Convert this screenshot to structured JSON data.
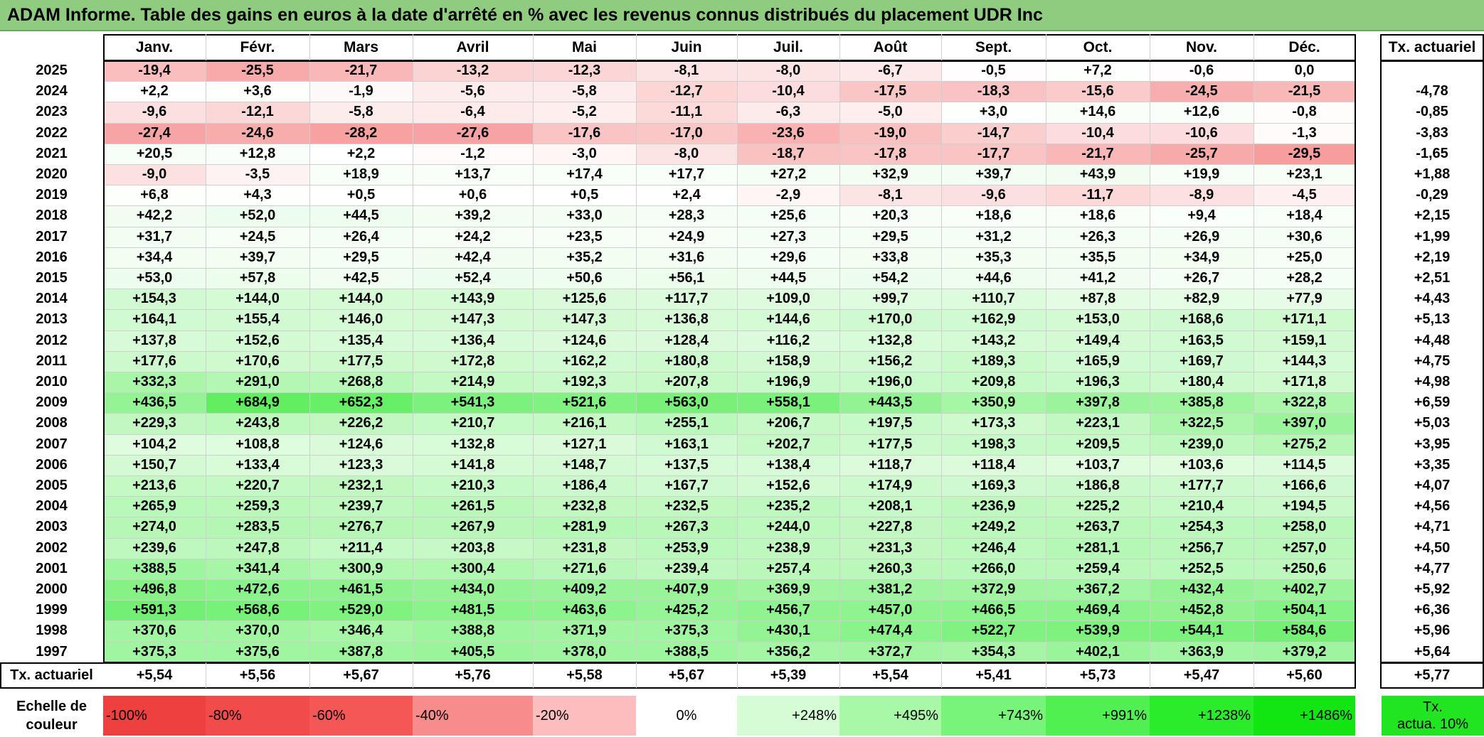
{
  "title": "ADAM Informe. Table des gains en euros à la date d'arrêté en % avec les revenus connus distribués du placement UDR Inc",
  "chart_data": {
    "type": "heatmap",
    "months": [
      "Janv.",
      "Févr.",
      "Mars",
      "Avril",
      "Mai",
      "Juin",
      "Juil.",
      "Août",
      "Sept.",
      "Oct.",
      "Nov.",
      "Déc."
    ],
    "annual_header": "Tx. actuariel",
    "rows": [
      {
        "year": "2025",
        "values": [
          "-19,4",
          "-25,5",
          "-21,7",
          "-13,2",
          "-12,3",
          "-8,1",
          "-8,0",
          "-6,7",
          "-0,5",
          "+7,2",
          "-0,6",
          "0,0"
        ],
        "annual": ""
      },
      {
        "year": "2024",
        "values": [
          "+2,2",
          "+3,6",
          "-1,9",
          "-5,6",
          "-5,8",
          "-12,7",
          "-10,4",
          "-17,5",
          "-18,3",
          "-15,6",
          "-24,5",
          "-21,5"
        ],
        "annual": "-4,78"
      },
      {
        "year": "2023",
        "values": [
          "-9,6",
          "-12,1",
          "-5,8",
          "-6,4",
          "-5,2",
          "-11,1",
          "-6,3",
          "-5,0",
          "+3,0",
          "+14,6",
          "+12,6",
          "-0,8"
        ],
        "annual": "-0,85"
      },
      {
        "year": "2022",
        "values": [
          "-27,4",
          "-24,6",
          "-28,2",
          "-27,6",
          "-17,6",
          "-17,0",
          "-23,6",
          "-19,0",
          "-14,7",
          "-10,4",
          "-10,6",
          "-1,3"
        ],
        "annual": "-3,83"
      },
      {
        "year": "2021",
        "values": [
          "+20,5",
          "+12,8",
          "+2,2",
          "-1,2",
          "-3,0",
          "-8,0",
          "-18,7",
          "-17,8",
          "-17,7",
          "-21,7",
          "-25,7",
          "-29,5"
        ],
        "annual": "-1,65"
      },
      {
        "year": "2020",
        "values": [
          "-9,0",
          "-3,5",
          "+18,9",
          "+13,7",
          "+17,4",
          "+17,7",
          "+27,2",
          "+32,9",
          "+39,7",
          "+43,9",
          "+19,9",
          "+23,1"
        ],
        "annual": "+1,88"
      },
      {
        "year": "2019",
        "values": [
          "+6,8",
          "+4,3",
          "+0,5",
          "+0,6",
          "+0,5",
          "+2,4",
          "-2,9",
          "-8,1",
          "-9,6",
          "-11,7",
          "-8,9",
          "-4,5"
        ],
        "annual": "-0,29"
      },
      {
        "year": "2018",
        "values": [
          "+42,2",
          "+52,0",
          "+44,5",
          "+39,2",
          "+33,0",
          "+28,3",
          "+25,6",
          "+20,3",
          "+18,6",
          "+18,6",
          "+9,4",
          "+18,4"
        ],
        "annual": "+2,15"
      },
      {
        "year": "2017",
        "values": [
          "+31,7",
          "+24,5",
          "+26,4",
          "+24,2",
          "+23,5",
          "+24,9",
          "+27,3",
          "+29,5",
          "+31,2",
          "+26,3",
          "+26,9",
          "+30,6"
        ],
        "annual": "+1,99"
      },
      {
        "year": "2016",
        "values": [
          "+34,4",
          "+39,7",
          "+29,5",
          "+42,4",
          "+35,2",
          "+31,6",
          "+29,6",
          "+33,8",
          "+35,3",
          "+35,5",
          "+34,9",
          "+25,0"
        ],
        "annual": "+2,19"
      },
      {
        "year": "2015",
        "values": [
          "+53,0",
          "+57,8",
          "+42,5",
          "+52,4",
          "+50,6",
          "+56,1",
          "+44,5",
          "+54,2",
          "+44,6",
          "+41,2",
          "+26,7",
          "+28,2"
        ],
        "annual": "+2,51"
      },
      {
        "year": "2014",
        "values": [
          "+154,3",
          "+144,0",
          "+144,0",
          "+143,9",
          "+125,6",
          "+117,7",
          "+109,0",
          "+99,7",
          "+110,7",
          "+87,8",
          "+82,9",
          "+77,9"
        ],
        "annual": "+4,43"
      },
      {
        "year": "2013",
        "values": [
          "+164,1",
          "+155,4",
          "+146,0",
          "+147,3",
          "+147,3",
          "+136,8",
          "+144,6",
          "+170,0",
          "+162,9",
          "+153,0",
          "+168,6",
          "+171,1"
        ],
        "annual": "+5,13"
      },
      {
        "year": "2012",
        "values": [
          "+137,8",
          "+152,6",
          "+135,4",
          "+136,4",
          "+124,6",
          "+128,4",
          "+116,2",
          "+132,8",
          "+143,2",
          "+149,4",
          "+163,5",
          "+159,1"
        ],
        "annual": "+4,48"
      },
      {
        "year": "2011",
        "values": [
          "+177,6",
          "+170,6",
          "+177,5",
          "+172,8",
          "+162,2",
          "+180,8",
          "+158,9",
          "+156,2",
          "+189,3",
          "+165,9",
          "+169,7",
          "+144,3"
        ],
        "annual": "+4,75"
      },
      {
        "year": "2010",
        "values": [
          "+332,3",
          "+291,0",
          "+268,8",
          "+214,9",
          "+192,3",
          "+207,8",
          "+196,9",
          "+196,0",
          "+209,8",
          "+196,3",
          "+180,4",
          "+171,8"
        ],
        "annual": "+4,98"
      },
      {
        "year": "2009",
        "values": [
          "+436,5",
          "+684,9",
          "+652,3",
          "+541,3",
          "+521,6",
          "+563,0",
          "+558,1",
          "+443,5",
          "+350,9",
          "+397,8",
          "+385,8",
          "+322,8"
        ],
        "annual": "+6,59"
      },
      {
        "year": "2008",
        "values": [
          "+229,3",
          "+243,8",
          "+226,2",
          "+210,7",
          "+216,1",
          "+255,1",
          "+206,7",
          "+197,5",
          "+173,3",
          "+223,1",
          "+322,5",
          "+397,0"
        ],
        "annual": "+5,03"
      },
      {
        "year": "2007",
        "values": [
          "+104,2",
          "+108,8",
          "+124,6",
          "+132,8",
          "+127,1",
          "+163,1",
          "+202,7",
          "+177,5",
          "+198,3",
          "+209,5",
          "+239,0",
          "+275,2"
        ],
        "annual": "+3,95"
      },
      {
        "year": "2006",
        "values": [
          "+150,7",
          "+133,4",
          "+123,3",
          "+141,8",
          "+148,7",
          "+137,5",
          "+138,4",
          "+118,7",
          "+118,4",
          "+103,7",
          "+103,6",
          "+114,5"
        ],
        "annual": "+3,35"
      },
      {
        "year": "2005",
        "values": [
          "+213,6",
          "+220,7",
          "+232,1",
          "+210,3",
          "+186,4",
          "+167,7",
          "+152,6",
          "+174,9",
          "+169,3",
          "+186,8",
          "+177,7",
          "+166,6"
        ],
        "annual": "+4,07"
      },
      {
        "year": "2004",
        "values": [
          "+265,9",
          "+259,3",
          "+239,7",
          "+261,5",
          "+232,8",
          "+232,5",
          "+235,2",
          "+208,1",
          "+236,9",
          "+225,2",
          "+210,4",
          "+194,5"
        ],
        "annual": "+4,56"
      },
      {
        "year": "2003",
        "values": [
          "+274,0",
          "+283,5",
          "+276,7",
          "+267,9",
          "+281,9",
          "+267,3",
          "+244,0",
          "+227,8",
          "+249,2",
          "+263,7",
          "+254,3",
          "+258,0"
        ],
        "annual": "+4,71"
      },
      {
        "year": "2002",
        "values": [
          "+239,6",
          "+247,8",
          "+211,4",
          "+203,8",
          "+231,8",
          "+253,9",
          "+238,9",
          "+231,3",
          "+246,4",
          "+281,1",
          "+256,7",
          "+257,0"
        ],
        "annual": "+4,50"
      },
      {
        "year": "2001",
        "values": [
          "+388,5",
          "+341,4",
          "+300,9",
          "+300,4",
          "+271,6",
          "+239,4",
          "+257,4",
          "+260,3",
          "+266,0",
          "+259,4",
          "+252,5",
          "+250,6"
        ],
        "annual": "+4,77"
      },
      {
        "year": "2000",
        "values": [
          "+496,8",
          "+472,6",
          "+461,5",
          "+434,0",
          "+409,2",
          "+407,9",
          "+369,9",
          "+381,2",
          "+372,9",
          "+367,2",
          "+432,4",
          "+402,7"
        ],
        "annual": "+5,92"
      },
      {
        "year": "1999",
        "values": [
          "+591,3",
          "+568,6",
          "+529,0",
          "+481,5",
          "+463,6",
          "+425,2",
          "+456,7",
          "+457,0",
          "+466,5",
          "+469,4",
          "+452,8",
          "+504,1"
        ],
        "annual": "+6,36"
      },
      {
        "year": "1998",
        "values": [
          "+370,6",
          "+370,0",
          "+346,4",
          "+388,8",
          "+371,9",
          "+375,3",
          "+430,1",
          "+474,4",
          "+522,7",
          "+539,9",
          "+544,1",
          "+584,6"
        ],
        "annual": "+5,96"
      },
      {
        "year": "1997",
        "values": [
          "+375,3",
          "+375,6",
          "+387,8",
          "+405,5",
          "+378,0",
          "+388,5",
          "+356,2",
          "+372,7",
          "+354,3",
          "+402,1",
          "+363,9",
          "+379,2"
        ],
        "annual": "+5,64"
      }
    ],
    "footer": {
      "label": "Tx. actuariel",
      "values": [
        "+5,54",
        "+5,56",
        "+5,67",
        "+5,76",
        "+5,58",
        "+5,67",
        "+5,39",
        "+5,54",
        "+5,41",
        "+5,73",
        "+5,47",
        "+5,60"
      ],
      "annual": "+5,77"
    },
    "scale": {
      "label_line1": "Echelle de",
      "label_line2": "couleur",
      "steps": [
        {
          "text": "-100%",
          "color": "#ef4040",
          "align": "left"
        },
        {
          "text": "-80%",
          "color": "#f24b4b",
          "align": "left"
        },
        {
          "text": "-60%",
          "color": "#f55757",
          "align": "left"
        },
        {
          "text": "-40%",
          "color": "#f88c8c",
          "align": "left"
        },
        {
          "text": "-20%",
          "color": "#fbbdbd",
          "align": "left"
        },
        {
          "text": "0%",
          "color": "#ffffff",
          "align": "center"
        },
        {
          "text": "+248%",
          "color": "#d6fcd6",
          "align": "right"
        },
        {
          "text": "+495%",
          "color": "#a8f8a8",
          "align": "right"
        },
        {
          "text": "+743%",
          "color": "#78f478",
          "align": "right"
        },
        {
          "text": "+991%",
          "color": "#4ff04f",
          "align": "right"
        },
        {
          "text": "+1238%",
          "color": "#2aec2a",
          "align": "right"
        },
        {
          "text": "+1486%",
          "color": "#12e612",
          "align": "right"
        }
      ],
      "annual_line1": "Tx.",
      "annual_line2": "actua. 10%",
      "annual_color": "#22e522"
    },
    "color_negative": "#f24b4b",
    "color_positive": "#12e612"
  }
}
